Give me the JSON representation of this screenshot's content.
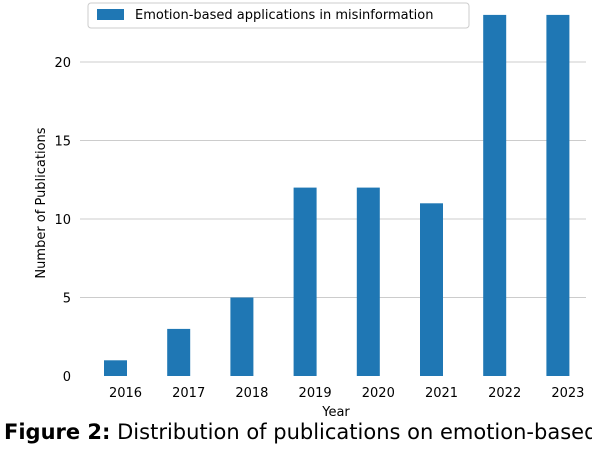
{
  "chart_data": {
    "type": "bar",
    "categories": [
      "2016",
      "2017",
      "2018",
      "2019",
      "2020",
      "2021",
      "2022",
      "2023"
    ],
    "series": [
      {
        "name": "Emotion-based applications in misinformation",
        "values": [
          1,
          3,
          5,
          12,
          12,
          11,
          23,
          23
        ],
        "color": "#1f77b4"
      }
    ],
    "xlabel": "Year",
    "ylabel": "Number of Publications",
    "ylim": [
      0,
      23
    ],
    "yticks": [
      0,
      5,
      10,
      15,
      20
    ],
    "grid": "horizontal",
    "legend_position": "top-center"
  },
  "caption": {
    "label": "Figure 2:",
    "text": "Distribution of publications on emotion-based"
  }
}
